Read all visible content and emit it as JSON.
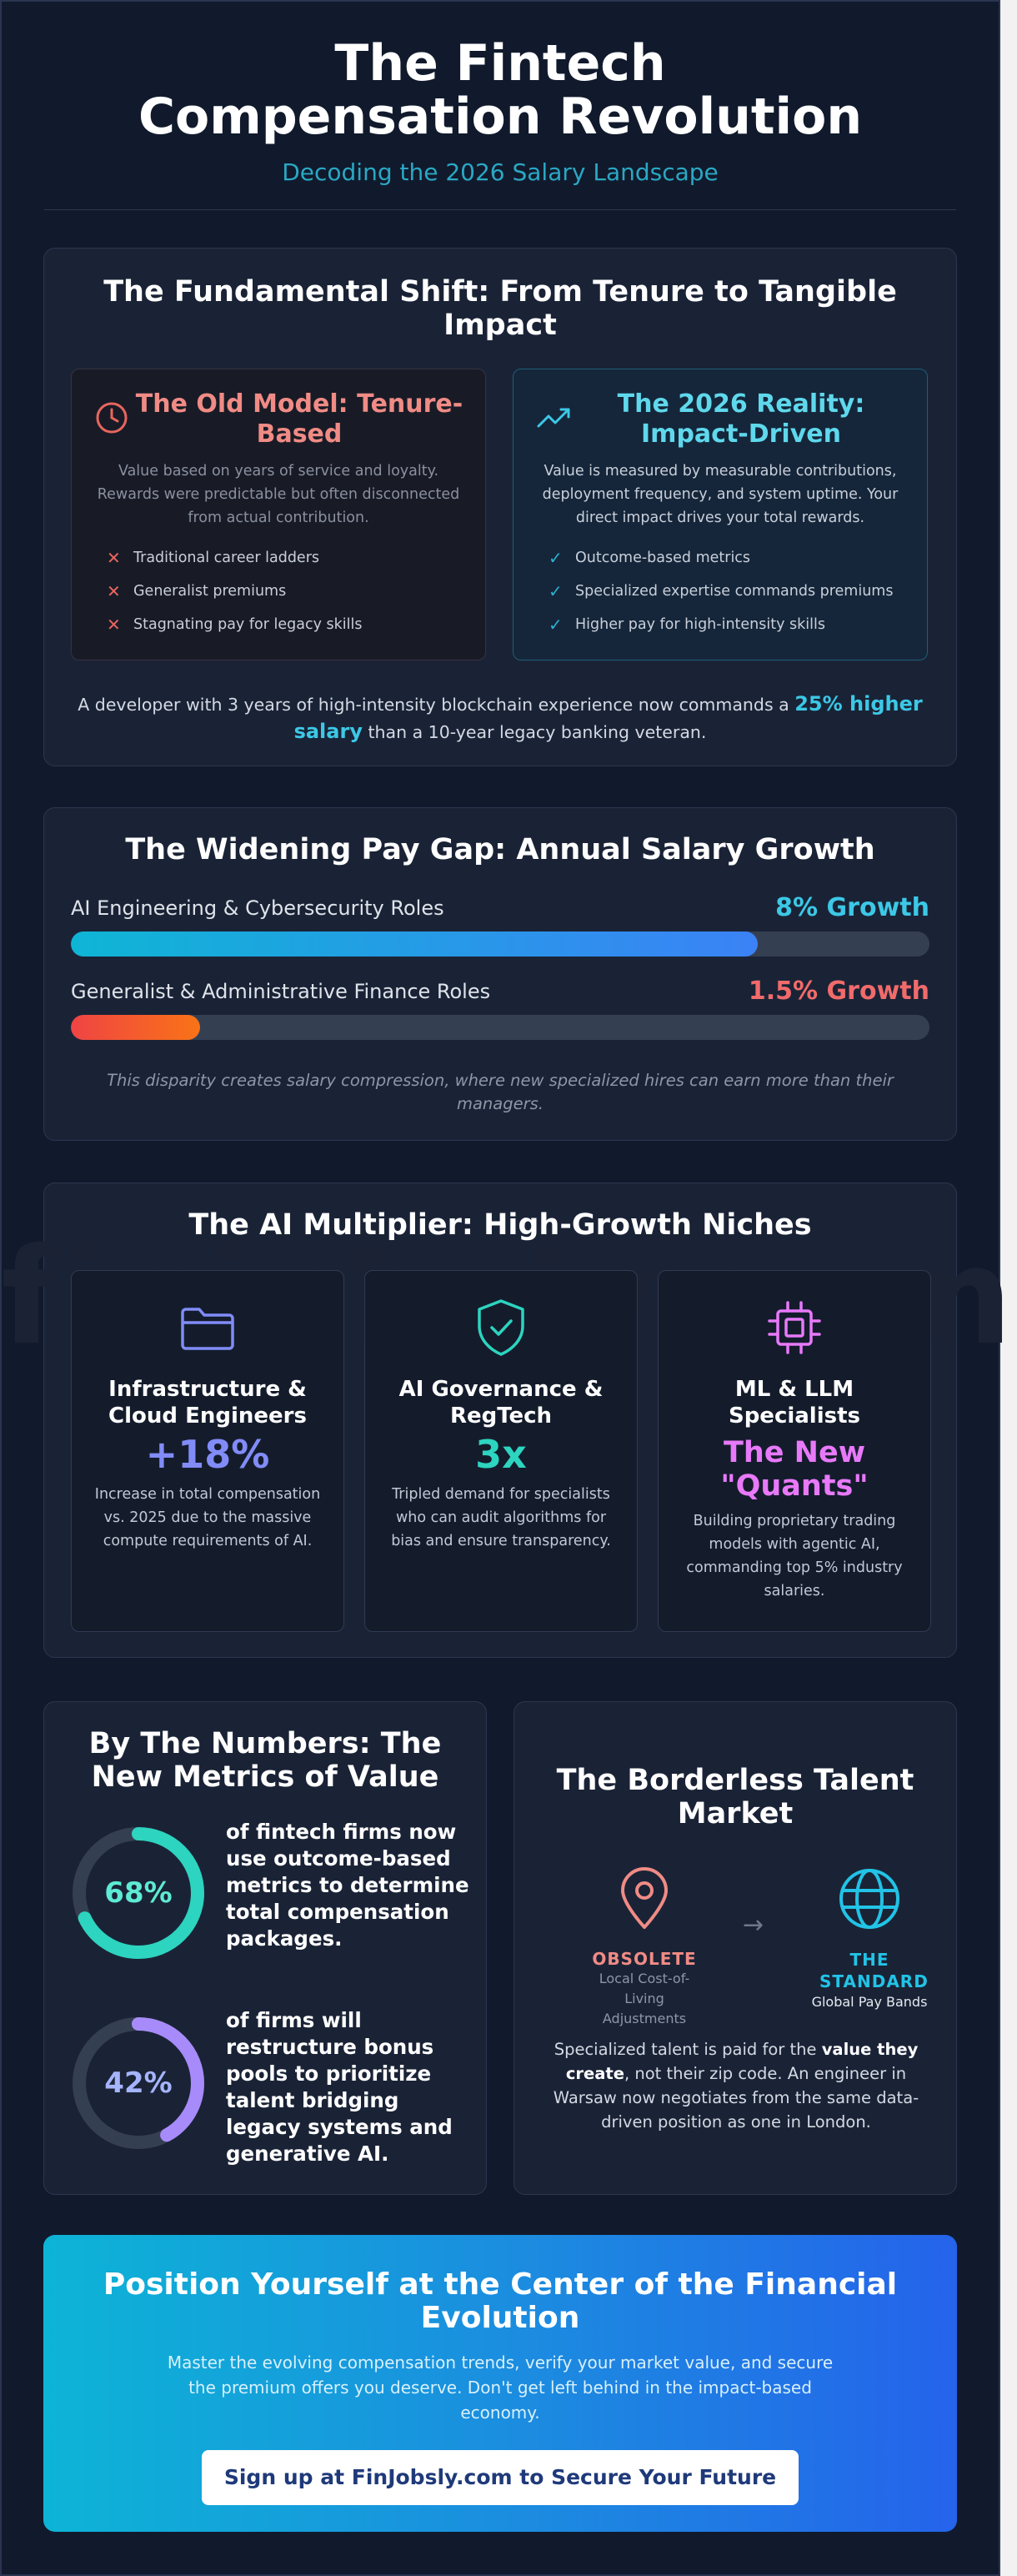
{
  "header": {
    "title": "The Fintech Compensation Revolution",
    "subtitle": "Decoding the 2026 Salary Landscape"
  },
  "shift": {
    "title": "The Fundamental Shift: From Tenure to Tangible Impact",
    "old": {
      "icon": "clock-icon",
      "title": "The Old Model: Tenure-Based",
      "desc": "Value based on years of service and loyalty. Rewards were predictable but often disconnected from actual contribution.",
      "items": [
        "Traditional career ladders",
        "Generalist premiums",
        "Stagnating pay for legacy skills"
      ]
    },
    "new": {
      "icon": "trending-up-icon",
      "title": "The 2026 Reality: Impact-Driven",
      "desc": "Value is measured by measurable contributions, deployment frequency, and system uptime. Your direct impact drives your total rewards.",
      "items": [
        "Outcome-based metrics",
        "Specialized expertise commands premiums",
        "Higher pay for high-intensity skills"
      ]
    },
    "note_pre": "A developer with 3 years of high-intensity blockchain experience now commands a ",
    "note_highlight": "25% higher salary",
    "note_post": " than a 10-year legacy banking veteran."
  },
  "paygap": {
    "title": "The Widening Pay Gap: Annual Salary Growth",
    "rows": [
      {
        "label": "AI Engineering & Cybersecurity Roles",
        "value": "8% Growth",
        "fill": 0.8,
        "color": "#3cc8e6"
      },
      {
        "label": "Generalist & Administrative Finance Roles",
        "value": "1.5% Growth",
        "fill": 0.15,
        "color": "#f16b6b"
      }
    ],
    "note": "This disparity creates salary compression, where new specialized hires can earn more than their managers."
  },
  "multiplier": {
    "title": "The AI Multiplier: High-Growth Niches",
    "watermark": "finjobsly.com",
    "niches": [
      {
        "icon": "folder-icon",
        "title": "Infrastructure & Cloud Engineers",
        "stat": "+18%",
        "color": "#818cf8",
        "desc": "Increase in total compensation vs. 2025 due to the massive compute requirements of AI."
      },
      {
        "icon": "shield-check-icon",
        "title": "AI Governance & RegTech",
        "stat": "3x",
        "color": "#2dd4bf",
        "desc": "Tripled demand for specialists who can audit algorithms for bias and ensure transparency."
      },
      {
        "icon": "cpu-chip-icon",
        "title": "ML & LLM Specialists",
        "stat": "The New \"Quants\"",
        "color": "#e879f9",
        "desc": "Building proprietary trading models with agentic AI, commanding top 5% industry salaries."
      }
    ]
  },
  "numbers": {
    "title": "By The Numbers: The New Metrics of Value",
    "items": [
      {
        "value": "68%",
        "fraction": 0.68,
        "color": "#2dd4bf",
        "text": "of fintech firms now use outcome-based metrics to determine total compensation packages."
      },
      {
        "value": "42%",
        "fraction": 0.42,
        "color": "#a78bfa",
        "text": "of firms will restructure bonus pools to prioritize talent bridging legacy systems and generative AI."
      }
    ]
  },
  "borderless": {
    "title": "The Borderless Talent Market",
    "obsolete_label": "OBSOLETE",
    "obsolete_sub": "Local Cost-of-Living Adjustments",
    "standard_label": "THE STANDARD",
    "standard_sub": "Global Pay Bands",
    "desc_pre": "Specialized talent is paid for the ",
    "desc_bold": "value they create",
    "desc_post": ", not their zip code. An engineer in Warsaw now negotiates from the same data-driven position as one in London."
  },
  "cta": {
    "title": "Position Yourself at the Center of the Financial Evolution",
    "desc": "Master the evolving compensation trends, verify your market value, and secure the premium offers you deserve. Don't get left behind in the impact-based economy.",
    "button": "Sign up at FinJobsly.com to Secure Your Future"
  }
}
